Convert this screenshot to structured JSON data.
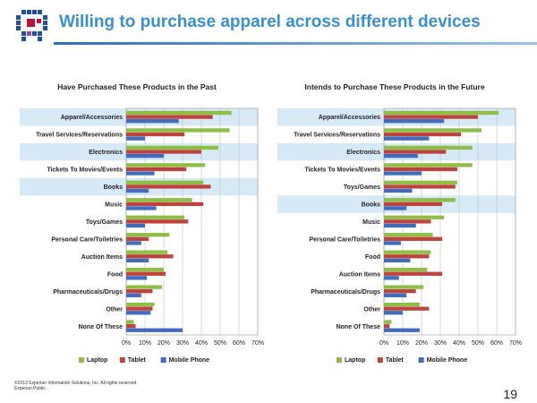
{
  "page": {
    "title": "Willing to purchase apparel across different devices",
    "page_number": "19",
    "copyright_line1": "©2013 Experian Information Solutions, Inc. All rights reserved.",
    "copyright_line2": "Experian Public."
  },
  "colors": {
    "laptop": "#8dbf45",
    "tablet": "#c0413d",
    "mobile": "#3d6cc0",
    "highlight": "#d6e9f7",
    "grid": "#bfbfbf",
    "title": "#3a8fd0"
  },
  "chart_data": [
    {
      "type": "bar",
      "orientation": "horizontal",
      "title": "Have Purchased These Products in the Past",
      "categories": [
        "Apparel/Accessories",
        "Travel Services/Reservations",
        "Electronics",
        "Tickets To Movies/Events",
        "Books",
        "Music",
        "Toys/Games",
        "Personal Care/Toiletries",
        "Auction Items",
        "Food",
        "Pharmaceuticals/Drugs",
        "Other",
        "None Of These"
      ],
      "highlighted": [
        "Apparel/Accessories",
        "Electronics",
        "Books"
      ],
      "series": [
        {
          "name": "Laptop",
          "values": [
            56,
            55,
            49,
            42,
            41,
            35,
            31,
            23,
            22,
            20,
            19,
            15,
            4
          ]
        },
        {
          "name": "Tablet",
          "values": [
            46,
            31,
            40,
            32,
            45,
            41,
            33,
            12,
            25,
            21,
            14,
            14,
            5
          ]
        },
        {
          "name": "Mobile Phone",
          "values": [
            28,
            10,
            20,
            15,
            12,
            16,
            10,
            8,
            12,
            11,
            8,
            13,
            30
          ]
        }
      ],
      "xticks": [
        "0%",
        "10%",
        "20%",
        "30%",
        "40%",
        "50%",
        "60%",
        "70%"
      ],
      "xlim": [
        0,
        70
      ],
      "legend": "bottom"
    },
    {
      "type": "bar",
      "orientation": "horizontal",
      "title": "Intends to Purchase These Products in the Future",
      "categories": [
        "Apparel/Accessories",
        "Travel Services/Reservations",
        "Electronics",
        "Tickets To Movies/Events",
        "Toys/Games",
        "Books",
        "Music",
        "Personal Care/Toiletries",
        "Food",
        "Auction Items",
        "Pharmaceuticals/Drugs",
        "Other",
        "None Of These"
      ],
      "highlighted": [
        "Apparel/Accessories",
        "Electronics",
        "Books"
      ],
      "series": [
        {
          "name": "Laptop",
          "values": [
            61,
            52,
            47,
            47,
            39,
            38,
            32,
            26,
            25,
            23,
            21,
            19,
            4
          ]
        },
        {
          "name": "Tablet",
          "values": [
            50,
            41,
            33,
            39,
            38,
            31,
            25,
            31,
            24,
            31,
            17,
            24,
            3
          ]
        },
        {
          "name": "Mobile Phone",
          "values": [
            32,
            24,
            18,
            20,
            15,
            12,
            17,
            9,
            14,
            8,
            12,
            10,
            19
          ]
        }
      ],
      "xticks": [
        "0%",
        "10%",
        "20%",
        "30%",
        "40%",
        "50%",
        "60%",
        "70%"
      ],
      "xlim": [
        0,
        70
      ],
      "legend": "bottom"
    }
  ]
}
